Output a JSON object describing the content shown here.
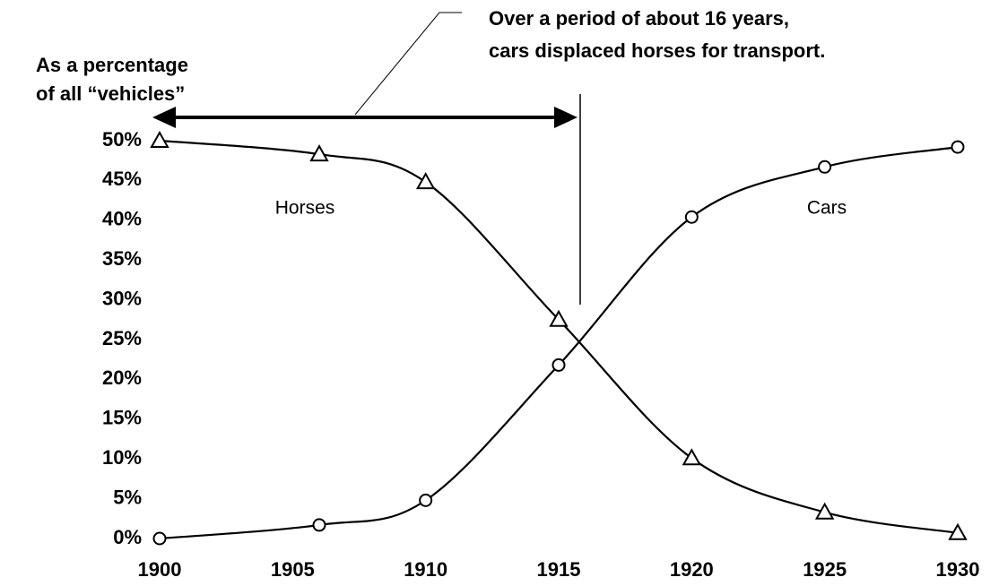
{
  "chart_data": {
    "type": "line",
    "annotation": [
      "Over a period of about 16 years,",
      "cars displaced horses for transport."
    ],
    "ylabel": [
      "As a percentage",
      "of all “vehicles”"
    ],
    "x": [
      1900,
      1906,
      1910,
      1915,
      1920,
      1925,
      1930
    ],
    "series": [
      {
        "name": "Horses",
        "color": "#000000",
        "marker": "triangle",
        "values": [
          50,
          48.3,
          44.8,
          27.5,
          10.1,
          3.3,
          0.7
        ]
      },
      {
        "name": "Cars",
        "color": "#000000",
        "marker": "circle",
        "values": [
          0,
          1.7,
          4.8,
          21.8,
          40.4,
          46.7,
          49.2
        ]
      }
    ],
    "xlim": [
      1900,
      1930
    ],
    "xticks": [
      1900,
      1905,
      1910,
      1915,
      1920,
      1925,
      1930
    ],
    "ylim": [
      0,
      50
    ],
    "yticks": [
      {
        "value": 0,
        "label": "0%"
      },
      {
        "value": 5,
        "label": "5%"
      },
      {
        "value": 10,
        "label": "10%"
      },
      {
        "value": 15,
        "label": "15%"
      },
      {
        "value": 20,
        "label": "20%"
      },
      {
        "value": 25,
        "label": "25%"
      },
      {
        "value": 30,
        "label": "30%"
      },
      {
        "value": 35,
        "label": "35%"
      },
      {
        "value": 40,
        "label": "40%"
      },
      {
        "value": 45,
        "label": "45%"
      },
      {
        "value": 50,
        "label": "50%"
      }
    ],
    "grid": false
  }
}
